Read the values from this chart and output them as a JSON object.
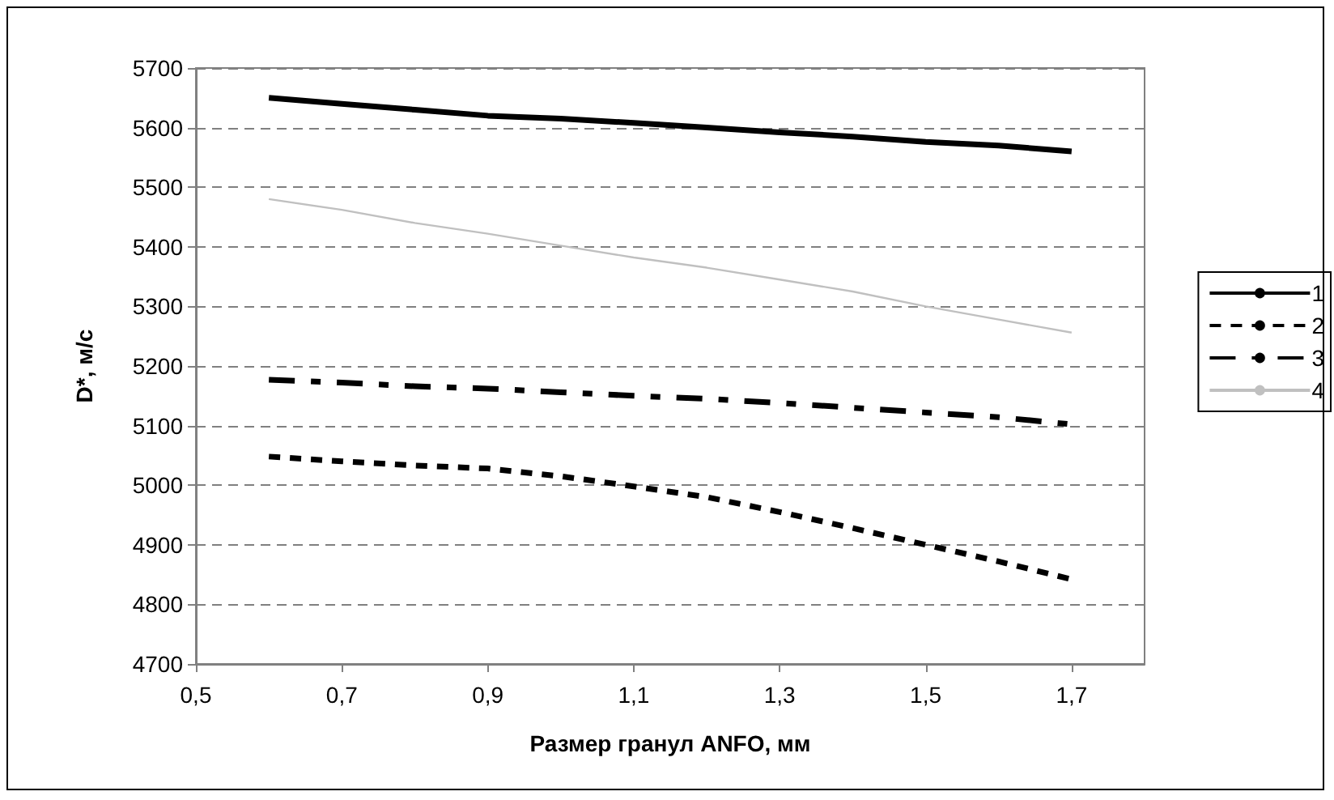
{
  "chart_data": {
    "type": "line",
    "xlabel": "Размер гранул ANFO, мм",
    "ylabel": "D*, м/с",
    "x": [
      0.6,
      0.7,
      0.8,
      0.9,
      1.0,
      1.1,
      1.2,
      1.3,
      1.4,
      1.5,
      1.6,
      1.7
    ],
    "series": [
      {
        "name": "1",
        "color": "#000000",
        "line_style": "solid",
        "values": [
          5650,
          5640,
          5630,
          5620,
          5615,
          5608,
          5600,
          5592,
          5585,
          5576,
          5570,
          5560
        ]
      },
      {
        "name": "2",
        "color": "#000000",
        "line_style": "dotted",
        "values": [
          5048,
          5040,
          5033,
          5028,
          5015,
          4998,
          4980,
          4955,
          4928,
          4900,
          4872,
          4842
        ]
      },
      {
        "name": "3",
        "color": "#000000",
        "line_style": "dashed",
        "values": [
          5177,
          5172,
          5166,
          5162,
          5156,
          5150,
          5145,
          5138,
          5130,
          5122,
          5114,
          5102
        ]
      },
      {
        "name": "4",
        "color": "#c0c0c0",
        "line_style": "solid",
        "values": [
          5480,
          5462,
          5440,
          5422,
          5402,
          5382,
          5365,
          5345,
          5325,
          5300,
          5278,
          5256
        ]
      }
    ],
    "xlim": [
      0.5,
      1.8
    ],
    "xticks": [
      {
        "value": 0.5,
        "label": "0,5"
      },
      {
        "value": 0.7,
        "label": "0,7"
      },
      {
        "value": 0.9,
        "label": "0,9"
      },
      {
        "value": 1.1,
        "label": "1,1"
      },
      {
        "value": 1.3,
        "label": "1,3"
      },
      {
        "value": 1.5,
        "label": "1,5"
      },
      {
        "value": 1.7,
        "label": "1,7"
      }
    ],
    "ylim": [
      4700,
      5700
    ],
    "yticks": [
      4700,
      4800,
      4900,
      5000,
      5100,
      5200,
      5300,
      5400,
      5500,
      5600,
      5700
    ],
    "grid": "y",
    "legend": "right",
    "marker": "none"
  }
}
